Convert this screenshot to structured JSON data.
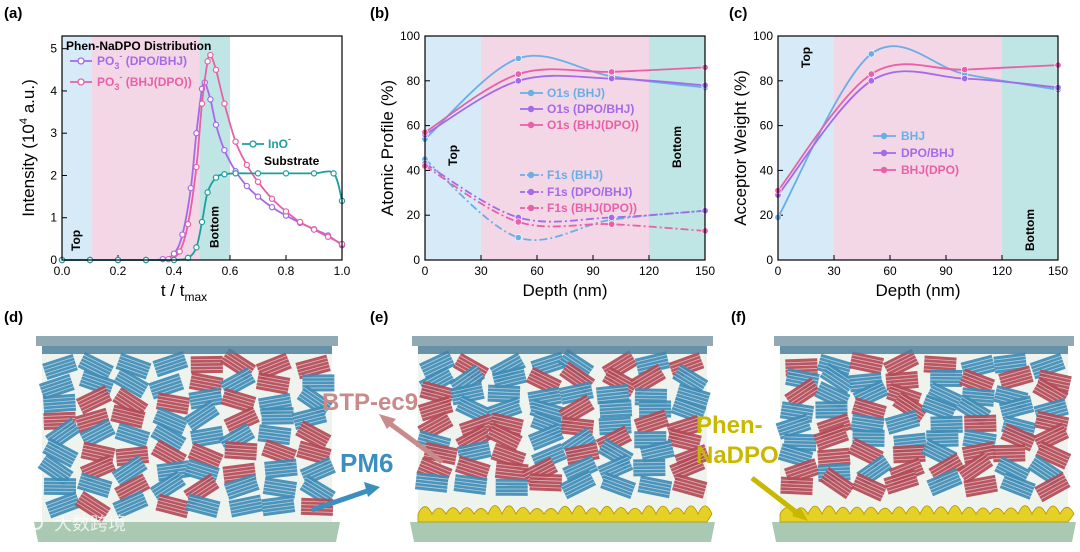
{
  "panel_labels": {
    "a": "(a)",
    "b": "(b)",
    "c": "(c)",
    "d": "(d)",
    "e": "(e)",
    "f": "(f)"
  },
  "chart_data": [
    {
      "type": "line",
      "id": "a",
      "title": "Phen-NaDPO Distribution",
      "xlabel_main": "t / t",
      "xlabel_sub": "max",
      "ylabel": "Intensity (10",
      "ylabel_sup": "4",
      "ylabel_tail": " a.u.)",
      "xlim": [
        0,
        1
      ],
      "ylim": [
        0,
        5.3
      ],
      "xticks": [
        0.0,
        0.2,
        0.4,
        0.6,
        0.8,
        1.0
      ],
      "xtick_labels": [
        "0.0",
        "0.2",
        "0.4",
        "0.6",
        "0.8",
        "1.0"
      ],
      "yticks": [
        0,
        1,
        2,
        3,
        4,
        5
      ],
      "ytick_labels": [
        "0",
        "1",
        "2",
        "3",
        "4",
        "5"
      ],
      "regions": [
        {
          "name": "Top",
          "from": 0.0,
          "to": 0.105,
          "color": "#d6ebf7",
          "label": "Top"
        },
        {
          "name": "Middle",
          "from": 0.105,
          "to": 0.49,
          "color": "#f4d7e6",
          "label": ""
        },
        {
          "name": "Bottom",
          "from": 0.49,
          "to": 0.6,
          "color": "#bfe6e4",
          "label": "Bottom"
        }
      ],
      "series": [
        {
          "name": "PO3- (DPO/BHJ)",
          "legend_main": "PO",
          "legend_sub": "3",
          "legend_sup": "-",
          "legend_tail": " (DPO/BHJ)",
          "color": "#a46ae8",
          "x": [
            0,
            0.1,
            0.2,
            0.3,
            0.36,
            0.4,
            0.43,
            0.46,
            0.48,
            0.5,
            0.51,
            0.53,
            0.55,
            0.58,
            0.62,
            0.66,
            0.7,
            0.75,
            0.8,
            0.85,
            0.9,
            0.95,
            1.0
          ],
          "y": [
            0,
            0,
            0,
            0,
            0.02,
            0.15,
            0.6,
            1.7,
            3.0,
            4.05,
            4.2,
            3.8,
            3.2,
            2.6,
            2.1,
            1.75,
            1.5,
            1.25,
            1.05,
            0.88,
            0.73,
            0.58,
            0.35
          ]
        },
        {
          "name": "PO3- (BHJ(DPO))",
          "legend_main": "PO",
          "legend_sub": "3",
          "legend_sup": "-",
          "legend_tail": " (BHJ(DPO))",
          "color": "#e860a8",
          "x": [
            0,
            0.1,
            0.2,
            0.3,
            0.38,
            0.42,
            0.45,
            0.48,
            0.5,
            0.52,
            0.53,
            0.55,
            0.58,
            0.62,
            0.66,
            0.7,
            0.75,
            0.8,
            0.85,
            0.9,
            0.95,
            1.0
          ],
          "y": [
            0,
            0,
            0,
            0,
            0.02,
            0.2,
            0.85,
            2.2,
            3.7,
            4.7,
            4.85,
            4.5,
            3.7,
            2.8,
            2.25,
            1.85,
            1.45,
            1.15,
            0.9,
            0.72,
            0.55,
            0.38
          ]
        },
        {
          "name": "InO-",
          "legend_main": "InO",
          "legend_sub": "",
          "legend_sup": "-",
          "legend_tail": "",
          "color": "#1e9e9e",
          "x": [
            0,
            0.1,
            0.2,
            0.3,
            0.4,
            0.45,
            0.48,
            0.5,
            0.52,
            0.55,
            0.58,
            0.62,
            0.7,
            0.8,
            0.9,
            0.97,
            1.0
          ],
          "y": [
            0,
            0,
            0,
            0,
            0,
            0.05,
            0.3,
            0.9,
            1.6,
            1.95,
            2.03,
            2.05,
            2.05,
            2.05,
            2.05,
            2.05,
            1.4
          ]
        }
      ],
      "annotation": "Substrate"
    },
    {
      "type": "line",
      "id": "b",
      "xlabel": "Depth (nm)",
      "ylabel": "Atomic Profile (%)",
      "xlim": [
        0,
        150
      ],
      "ylim": [
        0,
        100
      ],
      "xticks": [
        0,
        30,
        60,
        90,
        120,
        150
      ],
      "xtick_labels": [
        "0",
        "30",
        "60",
        "90",
        "120",
        "150"
      ],
      "yticks": [
        0,
        20,
        40,
        60,
        80,
        100
      ],
      "ytick_labels": [
        "0",
        "20",
        "40",
        "60",
        "80",
        "100"
      ],
      "regions": [
        {
          "name": "Top",
          "from": 0,
          "to": 30,
          "color": "#d6ebf7",
          "label": "Top"
        },
        {
          "name": "Middle",
          "from": 30,
          "to": 120,
          "color": "#f4d7e6",
          "label": ""
        },
        {
          "name": "Bottom",
          "from": 120,
          "to": 150,
          "color": "#bfe6e4",
          "label": "Bottom"
        }
      ],
      "series": [
        {
          "name": "O1s (BHJ)",
          "color": "#6aaee6",
          "dash": false,
          "x": [
            0,
            50,
            100,
            150
          ],
          "y": [
            54,
            90,
            82,
            77
          ]
        },
        {
          "name": "O1s (DPO/BHJ)",
          "color": "#a46ae8",
          "dash": false,
          "x": [
            0,
            50,
            100,
            150
          ],
          "y": [
            56,
            80,
            81,
            78
          ]
        },
        {
          "name": "O1s (BHJ(DPO))",
          "color": "#e860a8",
          "dash": false,
          "x": [
            0,
            50,
            100,
            150
          ],
          "y": [
            57,
            83,
            84,
            86
          ]
        },
        {
          "name": "F1s (BHJ)",
          "color": "#6aaee6",
          "dash": true,
          "x": [
            0,
            50,
            100,
            150
          ],
          "y": [
            45,
            10,
            18,
            22
          ]
        },
        {
          "name": "F1s (DPO/BHJ)",
          "color": "#a46ae8",
          "dash": true,
          "x": [
            0,
            50,
            100,
            150
          ],
          "y": [
            43,
            19,
            19,
            22
          ]
        },
        {
          "name": "F1s (BHJ(DPO))",
          "color": "#e860a8",
          "dash": true,
          "x": [
            0,
            50,
            100,
            150
          ],
          "y": [
            42,
            17,
            16,
            13
          ]
        }
      ]
    },
    {
      "type": "line",
      "id": "c",
      "xlabel": "Depth (nm)",
      "ylabel": "Acceptor Weight (%)",
      "xlim": [
        0,
        150
      ],
      "ylim": [
        0,
        100
      ],
      "xticks": [
        0,
        30,
        60,
        90,
        120,
        150
      ],
      "xtick_labels": [
        "0",
        "30",
        "60",
        "90",
        "120",
        "150"
      ],
      "yticks": [
        0,
        20,
        40,
        60,
        80,
        100
      ],
      "ytick_labels": [
        "0",
        "20",
        "40",
        "60",
        "80",
        "100"
      ],
      "regions": [
        {
          "name": "Top",
          "from": 0,
          "to": 30,
          "color": "#d6ebf7",
          "label": "Top"
        },
        {
          "name": "Middle",
          "from": 30,
          "to": 120,
          "color": "#f4d7e6",
          "label": ""
        },
        {
          "name": "Bottom",
          "from": 120,
          "to": 150,
          "color": "#bfe6e4",
          "label": "Bottom"
        }
      ],
      "series": [
        {
          "name": "BHJ",
          "color": "#6aaee6",
          "x": [
            0,
            50,
            100,
            150
          ],
          "y": [
            19,
            92,
            83,
            76
          ]
        },
        {
          "name": "DPO/BHJ",
          "color": "#a46ae8",
          "x": [
            0,
            50,
            100,
            150
          ],
          "y": [
            29,
            80,
            81,
            77
          ]
        },
        {
          "name": "BHJ(DPO)",
          "color": "#e860a8",
          "x": [
            0,
            50,
            100,
            150
          ],
          "y": [
            31,
            83,
            85,
            87
          ]
        }
      ]
    }
  ],
  "illustrations": {
    "labels": {
      "btp": "BTP-ec9",
      "pm6": "PM6",
      "phen_line1": "Phen-",
      "phen_line2": "NaDPO"
    },
    "colors": {
      "btp": "#c98a8a",
      "pm6": "#3a8fbf",
      "phen": "#c9b800",
      "red_molecule": "#b34a56",
      "blue_molecule": "#3f8cb6",
      "yellow_layer": "#e6d024",
      "substrate": "#a9c9b3",
      "top_electrode": "#8fa9b5"
    },
    "watermark": "大数跨境"
  }
}
